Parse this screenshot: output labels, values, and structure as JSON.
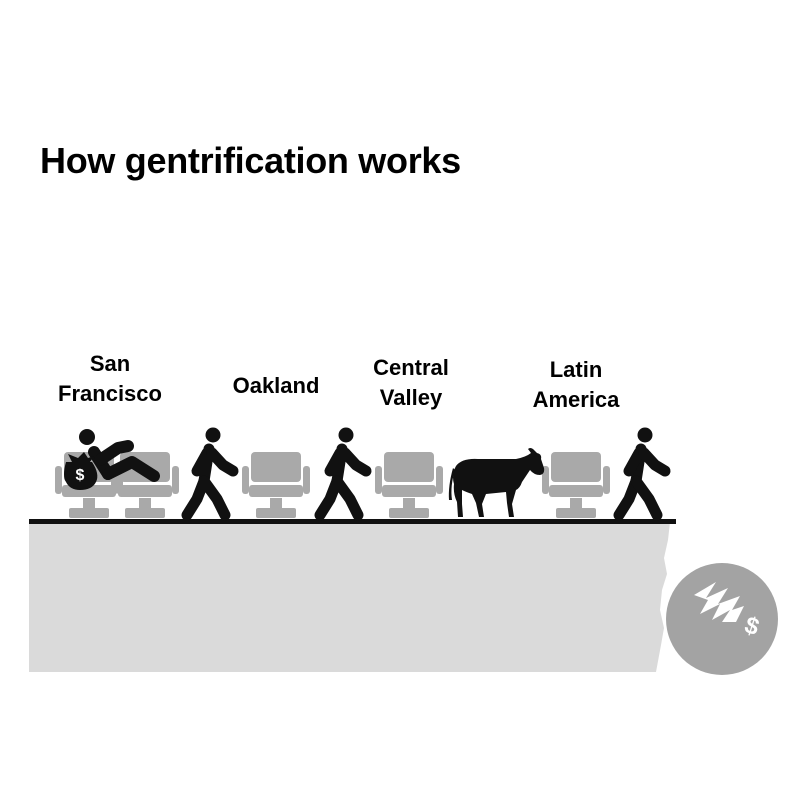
{
  "title": "How gentrification works",
  "labels": {
    "san_francisco": [
      "San",
      "Francisco"
    ],
    "oakland": [
      "Oakland"
    ],
    "central_valley": [
      "Central",
      "Valley"
    ],
    "latin_america": [
      "Latin",
      "America"
    ]
  },
  "coin_symbol": "$",
  "bag_symbol": "$",
  "colors": {
    "seat": "#a9a9a9",
    "ground": "#dadada",
    "coin": "#a3a3a3",
    "figure": "#111111"
  }
}
